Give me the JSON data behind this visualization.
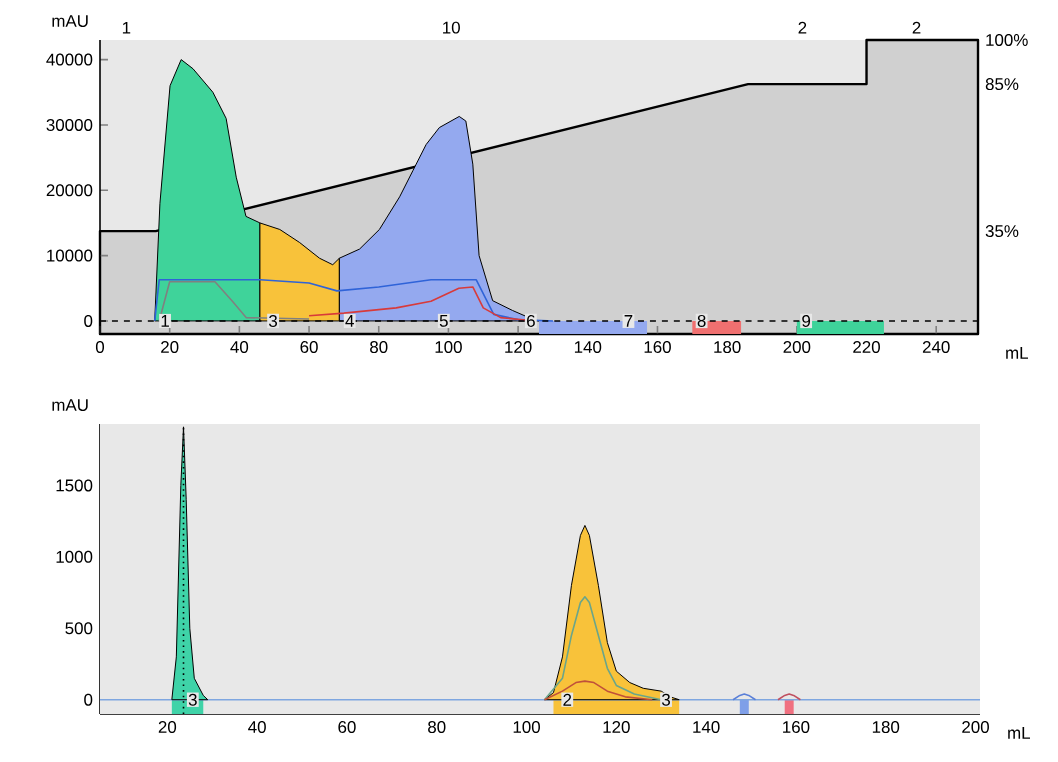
{
  "chart_data": [
    {
      "type": "area",
      "xlabel": "mL",
      "ylabel": "mAU",
      "xlim": [
        0,
        252
      ],
      "ylim": [
        -2000,
        43000
      ],
      "y2lim": [
        0,
        100
      ],
      "xticks": [
        0,
        20,
        40,
        60,
        80,
        100,
        120,
        140,
        160,
        180,
        200,
        220,
        240
      ],
      "yticks": [
        0,
        10000,
        20000,
        30000,
        40000
      ],
      "y2ticks": [
        {
          "value": 35,
          "label": "35%"
        },
        {
          "value": 85,
          "label": "85%"
        },
        {
          "value": 100,
          "label": "100%"
        }
      ],
      "series": [
        {
          "axis": "y2",
          "color": "#d0d0d0",
          "x": [
            0,
            16,
            186,
            220,
            220,
            252
          ],
          "values": [
            35,
            35,
            85,
            85,
            100,
            100
          ]
        },
        {
          "color": "#3fd39a",
          "x": [
            15.7,
            17.2,
            20.1,
            23.3,
            26.7,
            32.4,
            36.2,
            39.1,
            41.9,
            45.9
          ],
          "values": [
            0,
            18000,
            36000,
            40000,
            38600,
            35000,
            31000,
            22000,
            16000,
            15000
          ]
        },
        {
          "color": "#f8c23a",
          "x": [
            45.9,
            51.6,
            57.3,
            63,
            66.8,
            68.7
          ],
          "values": [
            15000,
            14000,
            12000,
            9600,
            8600,
            9600
          ]
        },
        {
          "color": "#94a9ef",
          "x": [
            68.7,
            74.5,
            80.2,
            86,
            89.8,
            93.6,
            97.4,
            103.1,
            105,
            107,
            108.8,
            112.7,
            118.4,
            124,
            126
          ],
          "values": [
            9600,
            11000,
            14000,
            19000,
            23000,
            27000,
            29600,
            31300,
            30600,
            24000,
            10000,
            3100,
            1600,
            300,
            0
          ]
        },
        {
          "type": "line",
          "color": "#808080",
          "x": [
            17,
            20,
            33,
            38,
            42,
            60
          ],
          "values": [
            0,
            6000,
            6000,
            3000,
            500,
            300
          ]
        },
        {
          "type": "line",
          "color": "#2f63d8",
          "x": [
            15.7,
            17,
            46,
            60,
            68,
            80,
            95,
            108,
            113,
            120,
            130
          ],
          "values": [
            0,
            6300,
            6300,
            5800,
            4600,
            5200,
            6300,
            6300,
            1000,
            200,
            0
          ]
        },
        {
          "type": "line",
          "color": "#d83a3a",
          "x": [
            60,
            70,
            85,
            95,
            103,
            107,
            110,
            115,
            125
          ],
          "values": [
            800,
            1200,
            2000,
            3000,
            5000,
            5200,
            2000,
            500,
            0
          ]
        }
      ],
      "bands": [
        {
          "axis": "x",
          "from": 126,
          "to": 157,
          "color": "#94a9ef"
        },
        {
          "axis": "x",
          "from": 170,
          "to": 184,
          "color": "#f07070"
        },
        {
          "axis": "x",
          "from": 200,
          "to": 225,
          "color": "#3fd39a"
        }
      ],
      "ref_lines": [
        {
          "axis": "y",
          "value": 0,
          "color": "#000000",
          "line_style": "dashed"
        }
      ],
      "annotations": [
        "1",
        "10",
        "2",
        "2",
        {
          "text": "1",
          "x": 16,
          "y": 0
        },
        {
          "text": "3",
          "x": 47,
          "y": 0
        },
        {
          "text": "4",
          "x": 69,
          "y": 0
        },
        {
          "text": "5",
          "x": 96,
          "y": 0
        },
        {
          "text": "6",
          "x": 121,
          "y": 0
        },
        {
          "text": "7",
          "x": 149,
          "y": 0
        },
        {
          "text": "8",
          "x": 170,
          "y": 0
        },
        {
          "text": "9",
          "x": 200,
          "y": 0
        }
      ]
    },
    {
      "type": "area",
      "xlabel": "mL",
      "ylabel": "mAU",
      "xlim": [
        5,
        201
      ],
      "ylim": [
        -100,
        1930
      ],
      "xticks": [
        20,
        40,
        60,
        80,
        100,
        120,
        140,
        160,
        180,
        200
      ],
      "yticks": [
        0,
        500,
        1000,
        1500
      ],
      "series": [
        {
          "type": "line",
          "color": "#7ea6e0",
          "x": [
            5,
            201
          ],
          "values": [
            0,
            0
          ]
        },
        {
          "color": "#3fd3a8",
          "x": [
            21,
            22,
            23,
            23.6,
            24.2,
            25,
            26,
            28,
            29
          ],
          "values": [
            0,
            300,
            1500,
            1910,
            1400,
            500,
            150,
            30,
            0
          ]
        },
        {
          "color": "#f8c23a",
          "x": [
            104,
            106,
            108,
            110,
            112,
            113,
            114,
            116,
            118,
            120,
            123,
            126,
            130,
            132,
            134
          ],
          "values": [
            0,
            50,
            300,
            800,
            1150,
            1220,
            1150,
            800,
            400,
            200,
            120,
            80,
            60,
            20,
            0
          ]
        },
        {
          "type": "line",
          "color": "#6aa58a",
          "x": [
            104,
            108,
            110,
            112,
            113,
            114,
            116,
            118,
            120,
            124,
            130
          ],
          "values": [
            0,
            150,
            450,
            680,
            720,
            680,
            450,
            220,
            100,
            40,
            0
          ]
        },
        {
          "type": "line",
          "color": "#c0503a",
          "x": [
            104,
            108,
            111,
            113,
            115,
            118,
            122,
            128
          ],
          "values": [
            0,
            60,
            120,
            130,
            120,
            60,
            20,
            0
          ]
        },
        {
          "type": "line",
          "color": "#5a7fd8",
          "x": [
            146,
            147.5,
            148.5,
            149.5,
            151
          ],
          "values": [
            0,
            30,
            40,
            30,
            0
          ]
        },
        {
          "type": "line",
          "color": "#c05060",
          "x": [
            156,
            157.5,
            158.5,
            159.5,
            161
          ],
          "values": [
            0,
            30,
            40,
            30,
            0
          ]
        }
      ],
      "bands": [
        {
          "axis": "x",
          "from": 21,
          "to": 28,
          "color": "#3fd3a8"
        },
        {
          "axis": "x",
          "from": 106,
          "to": 134,
          "color": "#f8c23a"
        },
        {
          "axis": "x",
          "from": 147.5,
          "to": 149.5,
          "color": "#7f9fe8"
        },
        {
          "axis": "x",
          "from": 157.5,
          "to": 159.5,
          "color": "#f07080"
        }
      ],
      "ref_lines": [
        {
          "axis": "x",
          "value": 23.6,
          "color": "#000000",
          "line_style": "dotted"
        }
      ],
      "annotations": [
        {
          "text": "3",
          "x": 23.6,
          "y": 0
        },
        {
          "text": "2",
          "x": 107,
          "y": 0
        },
        {
          "text": "3",
          "x": 129,
          "y": 0
        }
      ]
    }
  ]
}
